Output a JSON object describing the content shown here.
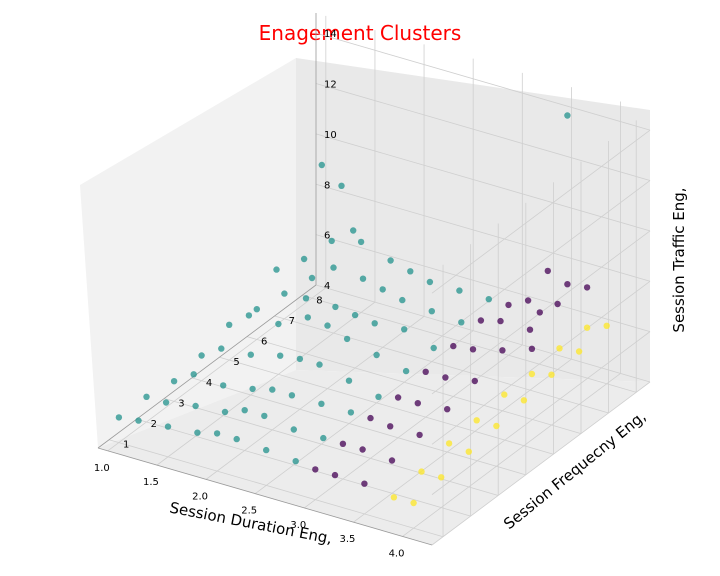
{
  "chart_data": {
    "type": "scatter",
    "title": "Enagement Clusters",
    "xlabel": "Session Duration Eng,",
    "ylabel": "Session Frequecny Eng,",
    "zlabel": "Session Traffic Eng,",
    "xlim": [
      0.9,
      4.3
    ],
    "ylim": [
      0.6,
      8.5
    ],
    "zlim": [
      4,
      14.8
    ],
    "xticks": [
      "1.0",
      "1.5",
      "2.0",
      "2.5",
      "3.0",
      "3.5",
      "4.0"
    ],
    "yticks": [
      "1",
      "2",
      "3",
      "4",
      "5",
      "6",
      "7",
      "8"
    ],
    "zticks": [
      "4",
      "6",
      "8",
      "10",
      "12",
      "14"
    ],
    "grid": true,
    "series": [
      {
        "color": "#21918c",
        "points": [
          [
            1.0,
            8,
            4.8
          ],
          [
            1.0,
            7,
            5.0
          ],
          [
            1.0,
            6,
            5.2
          ],
          [
            1.0,
            5,
            5.4
          ],
          [
            1.0,
            4,
            5.0
          ],
          [
            1.0,
            3,
            4.8
          ],
          [
            1.0,
            2,
            5.0
          ],
          [
            1.0,
            1,
            5.0
          ],
          [
            1.2,
            8,
            6.5
          ],
          [
            1.2,
            7,
            6.6
          ],
          [
            1.2,
            6,
            7.0
          ],
          [
            1.2,
            5,
            6.0
          ],
          [
            1.2,
            4,
            5.5
          ],
          [
            1.2,
            3,
            5.3
          ],
          [
            1.2,
            2,
            5.0
          ],
          [
            1.2,
            1,
            5.1
          ],
          [
            1.5,
            8,
            6.8
          ],
          [
            1.5,
            7,
            6.6
          ],
          [
            1.5,
            6,
            6.2
          ],
          [
            1.5,
            5,
            6.0
          ],
          [
            1.5,
            4,
            5.6
          ],
          [
            1.5,
            3,
            5.2
          ],
          [
            1.5,
            2,
            5.2
          ],
          [
            1.5,
            1,
            5.2
          ],
          [
            1.8,
            8,
            6.4
          ],
          [
            1.8,
            7,
            6.5
          ],
          [
            1.8,
            6,
            6.2
          ],
          [
            1.8,
            5,
            6.6
          ],
          [
            1.8,
            4,
            5.9
          ],
          [
            1.8,
            3,
            5.4
          ],
          [
            1.8,
            2,
            5.3
          ],
          [
            1.8,
            1,
            5.3
          ],
          [
            2.0,
            8,
            6.2
          ],
          [
            2.0,
            7,
            6.3
          ],
          [
            2.0,
            6,
            6.1
          ],
          [
            2.0,
            5,
            6.5
          ],
          [
            2.0,
            4,
            6.0
          ],
          [
            2.0,
            3,
            5.6
          ],
          [
            2.0,
            2,
            5.6
          ],
          [
            2.0,
            1,
            5.5
          ],
          [
            2.2,
            8,
            6.0
          ],
          [
            2.2,
            7,
            6.1
          ],
          [
            2.2,
            6,
            6.0
          ],
          [
            2.2,
            5,
            6.2
          ],
          [
            2.2,
            4,
            6.0
          ],
          [
            2.2,
            3,
            5.6
          ],
          [
            2.2,
            2,
            5.6
          ],
          [
            2.2,
            1,
            5.5
          ],
          [
            2.5,
            8,
            6.0
          ],
          [
            2.5,
            7,
            6.0
          ],
          [
            2.5,
            6,
            6.1
          ],
          [
            2.5,
            5,
            5.9
          ],
          [
            2.5,
            4,
            5.7
          ],
          [
            2.5,
            3,
            5.6
          ],
          [
            2.5,
            2,
            5.4
          ],
          [
            2.5,
            1,
            5.4
          ],
          [
            2.8,
            8,
            6.0
          ],
          [
            2.8,
            7,
            5.9
          ],
          [
            2.8,
            6,
            5.7
          ],
          [
            2.8,
            5,
            5.6
          ],
          [
            2.8,
            4,
            5.4
          ],
          [
            2.8,
            3,
            5.6
          ],
          [
            2.8,
            2,
            5.4
          ],
          [
            2.8,
            1,
            5.3
          ],
          [
            1.1,
            8,
            9.4
          ],
          [
            1.3,
            8,
            8.8
          ],
          [
            1.7,
            7,
            8.3
          ],
          [
            3.6,
            8,
            14.2
          ]
        ]
      },
      {
        "color": "#440154",
        "points": [
          [
            3.0,
            8,
            6.0
          ],
          [
            3.0,
            7,
            6.2
          ],
          [
            3.0,
            6,
            6.0
          ],
          [
            3.0,
            5,
            5.8
          ],
          [
            3.0,
            4,
            5.6
          ],
          [
            3.0,
            3,
            5.6
          ],
          [
            3.0,
            2,
            5.4
          ],
          [
            3.0,
            1,
            5.2
          ],
          [
            3.2,
            8,
            6.4
          ],
          [
            3.2,
            7,
            6.4
          ],
          [
            3.2,
            6,
            6.1
          ],
          [
            3.2,
            5,
            5.8
          ],
          [
            3.2,
            4,
            5.6
          ],
          [
            3.2,
            3,
            5.5
          ],
          [
            3.2,
            2,
            5.4
          ],
          [
            3.2,
            1,
            5.2
          ],
          [
            3.5,
            8,
            6.6
          ],
          [
            3.5,
            7,
            6.4
          ],
          [
            3.5,
            6,
            6.4
          ],
          [
            3.5,
            5,
            6.0
          ],
          [
            3.5,
            4,
            5.7
          ],
          [
            3.5,
            3,
            5.5
          ],
          [
            3.5,
            2,
            5.3
          ],
          [
            3.5,
            1,
            5.2
          ],
          [
            3.4,
            8,
            7.8
          ],
          [
            3.6,
            8,
            7.5
          ],
          [
            3.8,
            8,
            7.6
          ],
          [
            3.6,
            7,
            7.2
          ],
          [
            3.8,
            6,
            6.8
          ]
        ]
      },
      {
        "color": "#fde725",
        "points": [
          [
            3.8,
            8,
            6.0
          ],
          [
            3.8,
            7,
            6.0
          ],
          [
            3.8,
            6,
            5.8
          ],
          [
            3.8,
            5,
            5.8
          ],
          [
            3.8,
            4,
            5.6
          ],
          [
            3.8,
            3,
            5.5
          ],
          [
            3.8,
            2,
            5.2
          ],
          [
            3.8,
            1,
            5.0
          ],
          [
            4.0,
            8,
            6.3
          ],
          [
            4.0,
            7,
            6.1
          ],
          [
            4.0,
            6,
            6.0
          ],
          [
            4.0,
            5,
            5.8
          ],
          [
            4.0,
            4,
            5.6
          ],
          [
            4.0,
            3,
            5.4
          ],
          [
            4.0,
            2,
            5.2
          ],
          [
            4.0,
            1,
            5.0
          ]
        ]
      }
    ]
  }
}
